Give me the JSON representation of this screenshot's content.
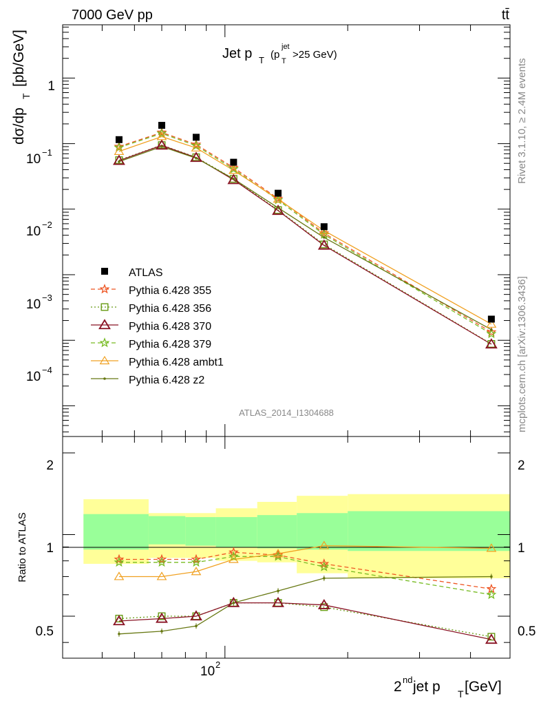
{
  "header": {
    "left": "7000 GeV pp",
    "right": "tt̄"
  },
  "side_labels": {
    "rivet": "Rivet 3.1.10, ≥ 2.4M events",
    "mcplots": "mcplots.cern.ch [arXiv:1306.3436]"
  },
  "main_panel": {
    "title_main": "Jet p",
    "title_sub_T": "T",
    "title_cut_open": "(p",
    "title_cut_sup": "jet",
    "title_cut_sub": "T",
    "title_cut_close": ">25 GeV)",
    "ylabel_main": "dσ/dp",
    "ylabel_sub": "T",
    "ylabel_unit": "[pb/GeV]",
    "analysis_tag": "ATLAS_2014_I1304688",
    "ytick_labels": [
      "1",
      "10",
      "10",
      "10",
      "10"
    ],
    "ytick_exponents": [
      "",
      "−1",
      "−2",
      "−3",
      "−4"
    ]
  },
  "ratio_panel": {
    "ylabel": "Ratio to ATLAS",
    "ytick_labels": [
      "2",
      "1",
      "0.5"
    ]
  },
  "x_axis": {
    "label_pre": "2",
    "label_sup": "nd",
    "label_mid": " jet p",
    "label_sub": "T",
    "label_unit": " [GeV]",
    "tick_label": "10",
    "tick_exponent": "2"
  },
  "legend": {
    "entries": [
      "ATLAS",
      "Pythia 6.428 355",
      "Pythia 6.428 356",
      "Pythia 6.428 370",
      "Pythia 6.428 379",
      "Pythia 6.428 ambt1",
      "Pythia 6.428 z2"
    ]
  },
  "chart_data": {
    "type": "scatter",
    "xscale": "log",
    "yscale": "log",
    "xlim": [
      40,
      500
    ],
    "ylim": [
      3.4e-06,
      6.5
    ],
    "ratio_ylim": [
      0.35,
      2.3
    ],
    "legend_position": "middle-left",
    "x": [
      55,
      70,
      85,
      105,
      135,
      175,
      450
    ],
    "bins": [
      [
        45,
        65
      ],
      [
        65,
        80
      ],
      [
        80,
        95
      ],
      [
        95,
        120
      ],
      [
        120,
        150
      ],
      [
        150,
        200
      ],
      [
        200,
        500
      ]
    ],
    "data": {
      "name": "ATLAS",
      "color": "#000000",
      "values": [
        0.115,
        0.19,
        0.125,
        0.052,
        0.0175,
        0.0054,
        0.00021
      ]
    },
    "ratio_band_stat": [
      [
        0.88,
        1.19
      ],
      [
        0.92,
        1.17
      ],
      [
        0.91,
        1.16
      ],
      [
        0.9,
        1.16
      ],
      [
        0.89,
        1.18
      ],
      [
        0.88,
        1.2
      ],
      [
        0.87,
        1.22
      ]
    ],
    "ratio_band_total": [
      [
        0.78,
        1.35
      ],
      [
        0.82,
        1.2
      ],
      [
        0.82,
        1.2
      ],
      [
        0.8,
        1.25
      ],
      [
        0.79,
        1.32
      ],
      [
        0.72,
        1.39
      ],
      [
        0.69,
        1.41
      ]
    ],
    "series": [
      {
        "name": "Pythia 6.428 355",
        "color": "#ee5522",
        "dash": "6,4",
        "marker": "star",
        "values": [
          0.09,
          0.148,
          0.097,
          0.043,
          0.0145,
          0.0043,
          0.000133
        ],
        "ratio": [
          0.81,
          0.81,
          0.81,
          0.86,
          0.84,
          0.78,
          0.63
        ]
      },
      {
        "name": "Pythia 6.428 356",
        "color": "#669911",
        "dash": "2,3",
        "marker": "square",
        "values": [
          0.056,
          0.095,
          0.062,
          0.029,
          0.0097,
          0.0029,
          8.8e-05
        ],
        "ratio": [
          0.49,
          0.5,
          0.5,
          0.56,
          0.56,
          0.54,
          0.42
        ]
      },
      {
        "name": "Pythia 6.428 370",
        "color": "#881122",
        "dash": "",
        "marker": "triangle",
        "values": [
          0.055,
          0.094,
          0.061,
          0.028,
          0.0095,
          0.0028,
          8.7e-05
        ],
        "ratio": [
          0.48,
          0.49,
          0.5,
          0.56,
          0.56,
          0.55,
          0.41
        ]
      },
      {
        "name": "Pythia 6.428 379",
        "color": "#77bb22",
        "dash": "6,4",
        "marker": "star",
        "values": [
          0.087,
          0.143,
          0.093,
          0.041,
          0.0138,
          0.0041,
          0.000125
        ],
        "ratio": [
          0.79,
          0.79,
          0.79,
          0.83,
          0.83,
          0.76,
          0.6
        ]
      },
      {
        "name": "Pythia 6.428 ambt1",
        "color": "#f0a020",
        "dash": "",
        "marker": "triangle-open",
        "values": [
          0.076,
          0.128,
          0.086,
          0.039,
          0.0142,
          0.0047,
          0.000176
        ],
        "ratio": [
          0.7,
          0.7,
          0.73,
          0.81,
          0.85,
          0.91,
          0.89
        ]
      },
      {
        "name": "Pythia 6.428 z2",
        "color": "#667711",
        "dash": "",
        "marker": "dot",
        "values": [
          0.053,
          0.09,
          0.06,
          0.029,
          0.0105,
          0.0037,
          0.000145
        ],
        "ratio": [
          0.43,
          0.44,
          0.46,
          0.56,
          0.62,
          0.69,
          0.7
        ]
      }
    ]
  }
}
